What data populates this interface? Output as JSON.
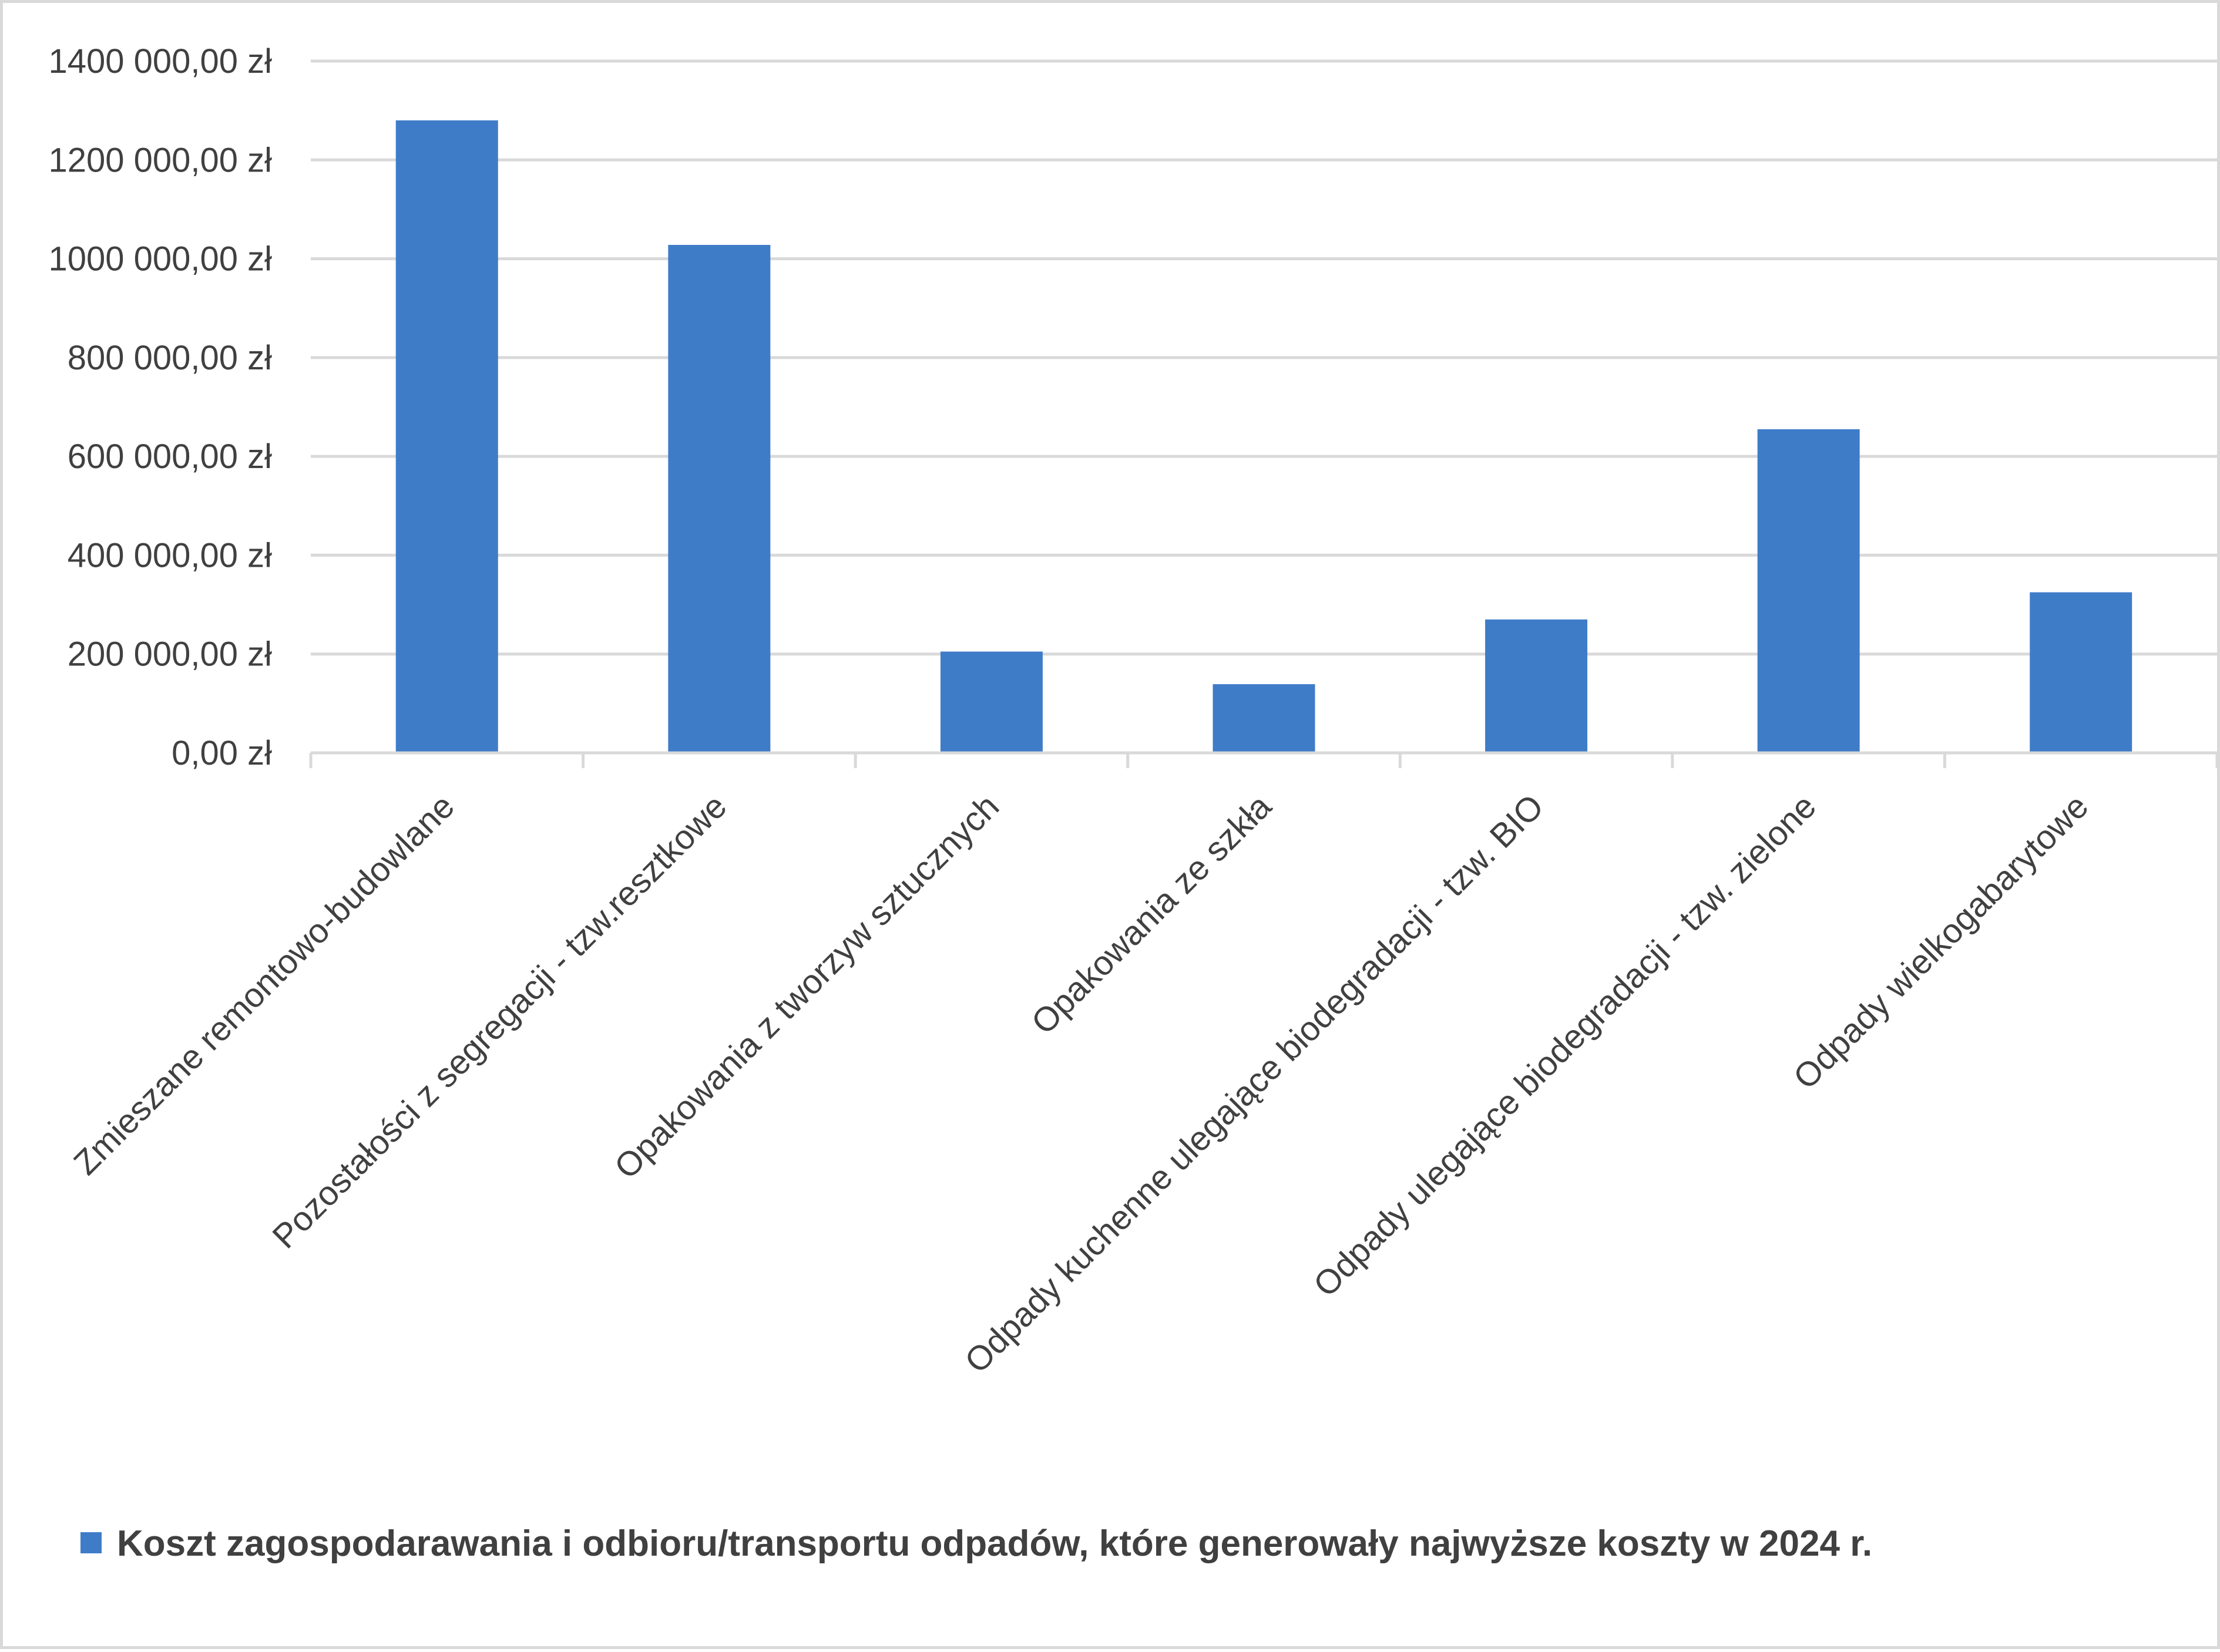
{
  "chart_data": {
    "type": "bar",
    "categories": [
      "Zmieszane remontowo-budowlane",
      "Pozostałości z segregacji - tzw.resztkowe",
      "Opakowania z tworzyw sztucznych",
      "Opakowania ze szkła",
      "Odpady kuchenne ulegające biodegradacji - tzw. BIO",
      "Odpady ulegające biodegradacji - tzw. zielone",
      "Odpady wielkogabarytowe"
    ],
    "series": [
      {
        "name": "Koszt zagospodarawania i odbioru/transportu odpadów, które generowały najwyższe koszty w 2024 r.",
        "color": "#3f7cc8",
        "values": [
          1280000,
          1028000,
          205000,
          139000,
          270000,
          655000,
          325000
        ]
      }
    ],
    "yticks": [
      "0,00 zł",
      "200 000,00 zł",
      "400 000,00 zł",
      "600 000,00 zł",
      "800 000,00 zł",
      "1000 000,00 zł",
      "1200 000,00 zł",
      "1400 000,00 zł"
    ],
    "ylim": [
      0,
      1400000
    ],
    "grid": true,
    "legend_position": "bottom"
  }
}
